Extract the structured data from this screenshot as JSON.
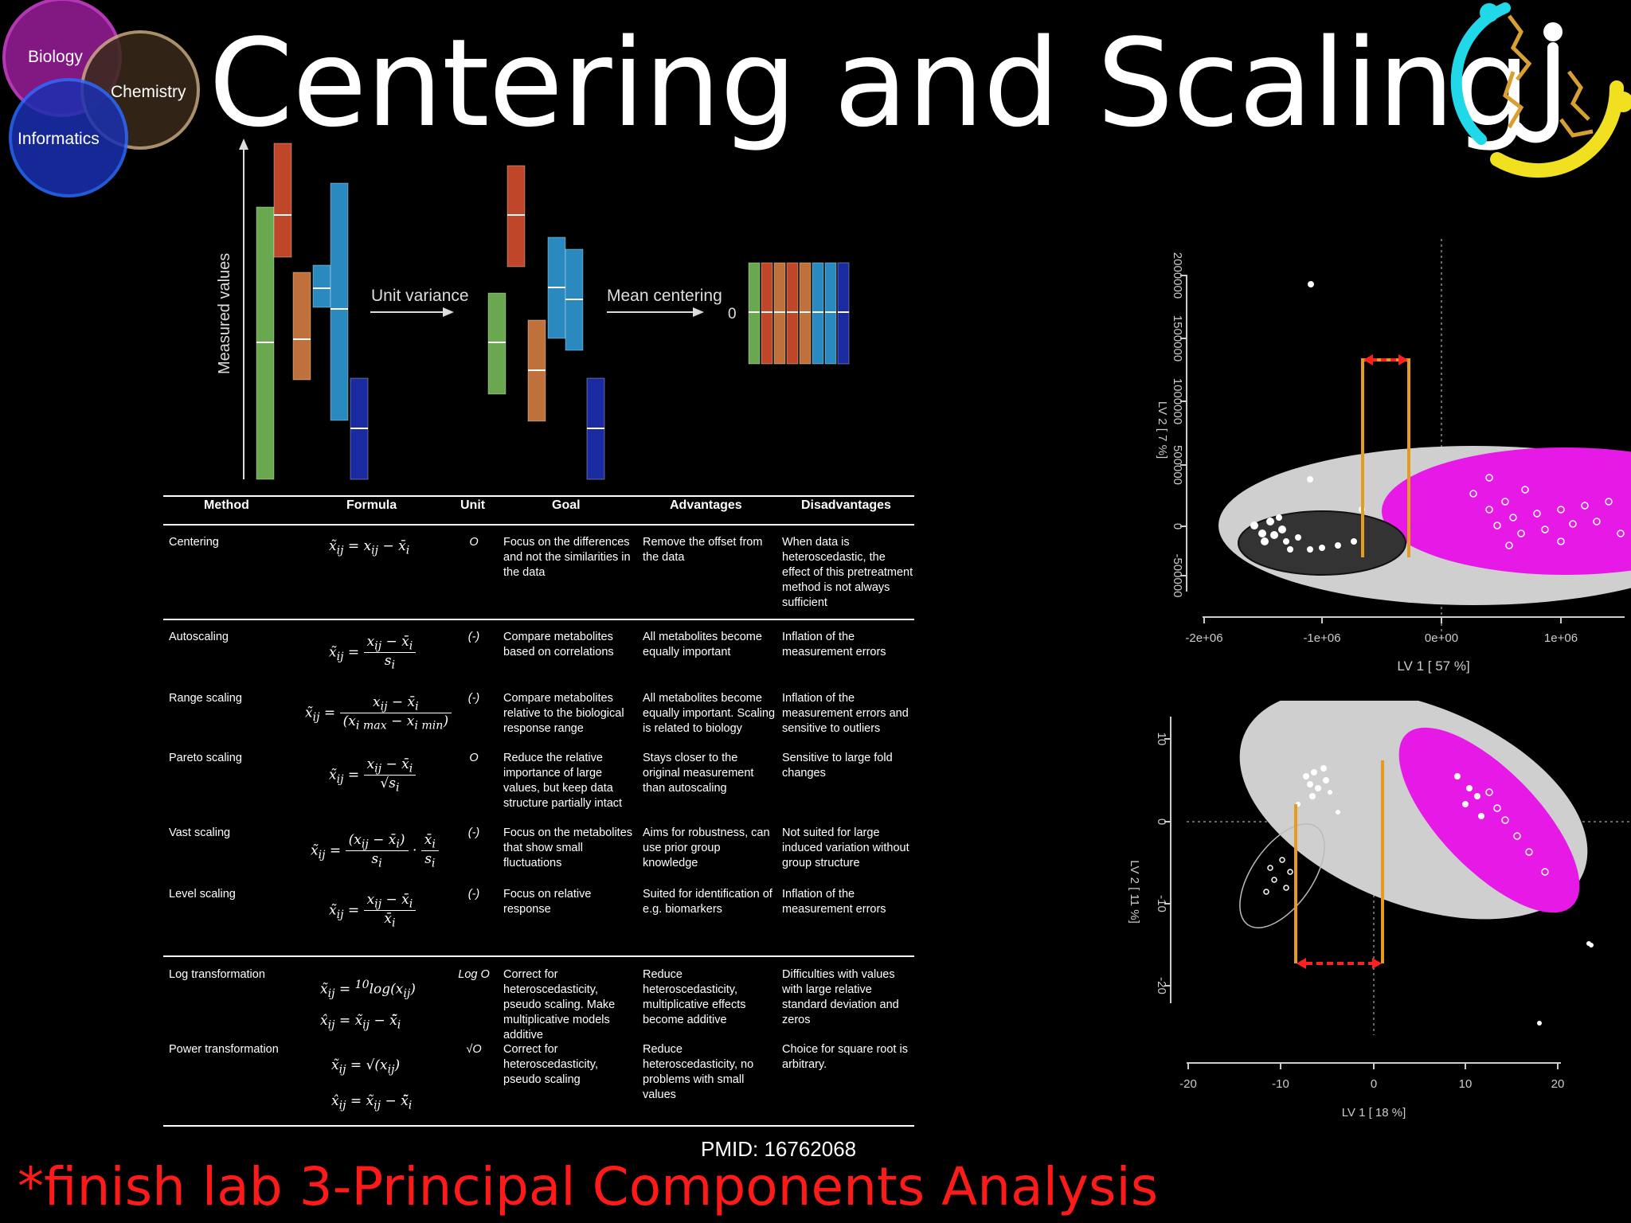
{
  "title": "Centering and Scaling",
  "venn": {
    "biology": "Biology",
    "chemistry": "Chemistry",
    "informatics": "Informatics"
  },
  "diagram": {
    "y_axis_label": "Measured values",
    "unit_variance_label": "Unit variance",
    "mean_centering_label": "Mean centering",
    "zero_label": "0"
  },
  "table": {
    "headers": [
      "Method",
      "Formula",
      "Unit",
      "Goal",
      "Advantages",
      "Disadvantages"
    ],
    "rows": [
      {
        "method": "Centering",
        "unit": "O",
        "goal": "Focus on the differences and not the similarities in the data",
        "adv": "Remove the offset from the data",
        "dis": "When data is heteroscedastic, the effect of this pretreatment method is not always sufficient"
      },
      {
        "method": "Autoscaling",
        "unit": "(-)",
        "goal": "Compare metabolites based on correlations",
        "adv": "All metabolites become equally important",
        "dis": "Inflation of the measurement errors"
      },
      {
        "method": "Range scaling",
        "unit": "(-)",
        "goal": "Compare metabolites relative to the biological response range",
        "adv": "All metabolites become equally important. Scaling is related to biology",
        "dis": "Inflation of the measurement errors and sensitive to outliers"
      },
      {
        "method": "Pareto scaling",
        "unit": "O",
        "goal": "Reduce the relative importance of large values, but keep data structure partially intact",
        "adv": "Stays closer to the original measurement than autoscaling",
        "dis": "Sensitive to large fold changes"
      },
      {
        "method": "Vast scaling",
        "unit": "(-)",
        "goal": "Focus on the metabolites that show small fluctuations",
        "adv": "Aims for robustness, can use prior group knowledge",
        "dis": "Not suited for large induced variation without group structure"
      },
      {
        "method": "Level scaling",
        "unit": "(-)",
        "goal": "Focus on relative response",
        "adv": "Suited for identification of e.g. biomarkers",
        "dis": "Inflation of the measurement errors"
      },
      {
        "method": "Log transformation",
        "unit": "Log O",
        "goal": "Correct for heteroscedasticity, pseudo scaling. Make multiplicative models additive",
        "adv": "Reduce heteroscedasticity, multiplicative effects become additive",
        "dis": "Difficulties with values with large relative standard deviation and zeros"
      },
      {
        "method": "Power transformation",
        "unit": "√O",
        "goal": "Correct for heteroscedasticity, pseudo scaling",
        "adv": "Reduce heteroscedasticity, no problems with small values",
        "dis": "Choice for square root is arbitrary."
      }
    ]
  },
  "plot_top": {
    "xlabel": "LV 1 [ 57 %]",
    "ylabel": "LV 2 [ 7 %]",
    "xticks": [
      "-2e+06",
      "-1e+06",
      "0e+00",
      "1e+06"
    ],
    "yticks": [
      "-500000",
      "0",
      "500000",
      "1000000",
      "1500000",
      "2000000"
    ]
  },
  "plot_bottom": {
    "xlabel": "LV 1 [ 18 %]",
    "ylabel": "LV 2 [ 11 %]",
    "xticks": [
      "-20",
      "-10",
      "0",
      "10",
      "20"
    ],
    "yticks": [
      "-20",
      "-10",
      "0",
      "10"
    ]
  },
  "pmid": "PMID: 16762068",
  "footer_note": "*finish lab 3-Principal Components Analysis",
  "colors": {
    "title": "#ffffff",
    "footer": "#ff1a1a",
    "magenta": "#e619e6",
    "orange": "#e69a1e",
    "red_arrow": "#ff2020"
  }
}
